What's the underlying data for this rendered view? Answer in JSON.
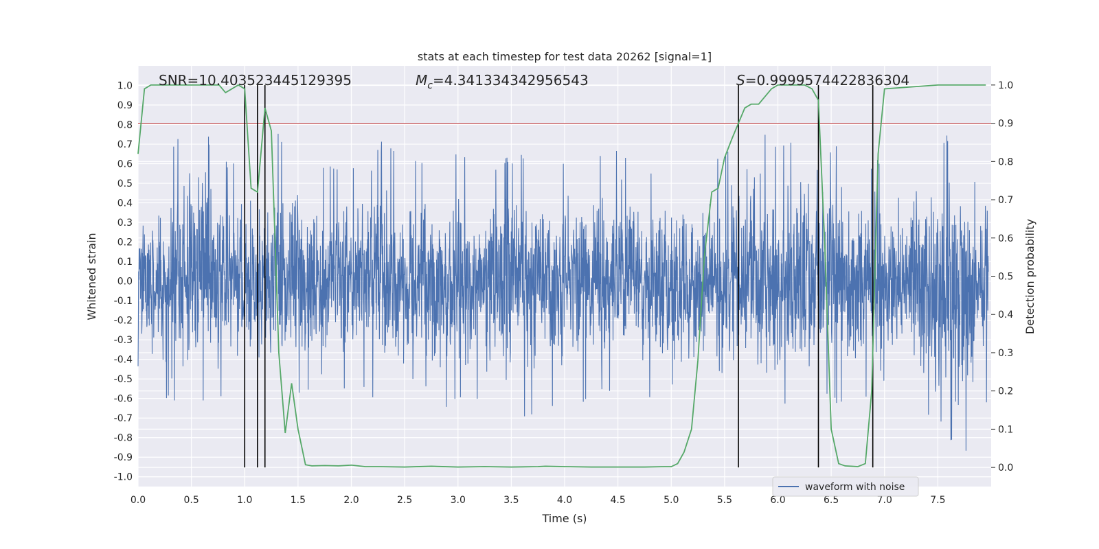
{
  "chart_data": {
    "type": "line",
    "title": "stats at each timestep for test data 20262 [signal=1]",
    "xlabel": "Time (s)",
    "ylabel_left": "Whitened strain",
    "ylabel_right": "Detection probability",
    "xlim": [
      0,
      8
    ],
    "ylim_left": [
      -1.05,
      1.1
    ],
    "ylim_right": [
      -0.05,
      1.05
    ],
    "x_ticks": [
      "0.0",
      "0.5",
      "1.0",
      "1.5",
      "2.0",
      "2.5",
      "3.0",
      "3.5",
      "4.0",
      "4.5",
      "5.0",
      "5.5",
      "6.0",
      "6.5",
      "7.0",
      "7.5"
    ],
    "y_left_ticks": [
      "-1.0",
      "-0.9",
      "-0.8",
      "-0.7",
      "-0.6",
      "-0.5",
      "-0.4",
      "-0.3",
      "-0.2",
      "-0.1",
      "0.0",
      "0.1",
      "0.2",
      "0.3",
      "0.4",
      "0.5",
      "0.6",
      "0.7",
      "0.8",
      "0.9",
      "1.0"
    ],
    "y_right_ticks": [
      "0.0",
      "0.1",
      "0.2",
      "0.3",
      "0.4",
      "0.5",
      "0.6",
      "0.7",
      "0.8",
      "0.9",
      "1.0"
    ],
    "annotations": {
      "snr": "SNR=10.403523445129395",
      "mc_symbol": "M",
      "mc_subscript": "c",
      "mc_value": "=4.341334342956543",
      "s_symbol": "S",
      "s_value": "=0.9999574422836304"
    },
    "threshold": 0.9,
    "vertical_lines_x": [
      1.0,
      1.12,
      1.19,
      5.63,
      6.38,
      6.89
    ],
    "legend": {
      "entries": [
        "waveform with noise"
      ],
      "placement": "lower right"
    },
    "grid": true,
    "colors": {
      "waveform": "#4c72b0",
      "probability": "#55a868",
      "threshold": "#c44e52",
      "markers": "#000000",
      "background": "#eaeaf2",
      "grid": "#ffffff"
    },
    "series": [
      {
        "name": "waveform with noise",
        "axis": "left",
        "description_envelope_x": [
          0.0,
          0.25,
          0.5,
          0.75,
          1.0,
          1.25,
          1.5,
          1.75,
          2.0,
          2.25,
          2.5,
          2.75,
          3.0,
          3.25,
          3.5,
          3.75,
          4.0,
          4.25,
          4.5,
          4.75,
          5.0,
          5.25,
          5.5,
          5.75,
          6.0,
          6.25,
          6.5,
          6.75,
          7.0,
          7.25,
          7.5,
          7.75,
          8.0
        ],
        "upper_envelope": [
          0.48,
          0.62,
          0.88,
          0.66,
          0.58,
          0.78,
          0.72,
          0.6,
          0.62,
          0.72,
          0.68,
          0.65,
          0.7,
          0.6,
          0.66,
          0.74,
          0.64,
          0.66,
          0.72,
          0.6,
          0.56,
          0.64,
          0.68,
          0.8,
          0.7,
          0.86,
          0.72,
          0.6,
          0.66,
          0.68,
          0.74,
          0.76,
          0.8
        ],
        "lower_envelope": [
          -0.74,
          -0.6,
          -0.66,
          -0.62,
          -0.56,
          -0.7,
          -0.62,
          -0.6,
          -0.58,
          -0.62,
          -0.68,
          -0.86,
          -0.6,
          -0.62,
          -0.82,
          -0.7,
          -0.66,
          -0.6,
          -0.62,
          -0.58,
          -0.76,
          -0.6,
          -0.7,
          -0.74,
          -0.66,
          -0.7,
          -0.62,
          -0.64,
          -0.68,
          -0.64,
          -0.76,
          -0.96,
          -0.6
        ]
      },
      {
        "name": "",
        "axis": "right",
        "x": [
          0.0,
          0.06,
          0.12,
          0.3,
          0.5,
          0.7,
          0.76,
          0.82,
          0.88,
          0.94,
          1.0,
          1.06,
          1.12,
          1.19,
          1.25,
          1.32,
          1.38,
          1.44,
          1.5,
          1.57,
          1.63,
          1.75,
          1.88,
          2.0,
          2.13,
          2.25,
          2.5,
          2.75,
          3.0,
          3.25,
          3.5,
          3.75,
          3.82,
          4.0,
          4.25,
          4.5,
          4.75,
          4.94,
          5.0,
          5.06,
          5.12,
          5.19,
          5.25,
          5.31,
          5.38,
          5.44,
          5.5,
          5.57,
          5.63,
          5.69,
          5.75,
          5.82,
          5.88,
          5.94,
          6.0,
          6.07,
          6.13,
          6.19,
          6.25,
          6.32,
          6.38,
          6.44,
          6.5,
          6.57,
          6.63,
          6.69,
          6.75,
          6.82,
          6.88,
          6.94,
          7.0,
          7.5,
          7.95
        ],
        "values": [
          0.82,
          0.99,
          1.0,
          1.0,
          1.0,
          1.0,
          1.0,
          0.98,
          0.99,
          1.0,
          0.99,
          0.73,
          0.72,
          0.94,
          0.88,
          0.3,
          0.09,
          0.22,
          0.1,
          0.007,
          0.004,
          0.005,
          0.004,
          0.006,
          0.002,
          0.002,
          0.001,
          0.003,
          0.001,
          0.002,
          0.001,
          0.002,
          0.003,
          0.002,
          0.001,
          0.001,
          0.001,
          0.002,
          0.002,
          0.01,
          0.04,
          0.1,
          0.28,
          0.55,
          0.72,
          0.73,
          0.81,
          0.86,
          0.9,
          0.94,
          0.95,
          0.95,
          0.97,
          0.99,
          1.0,
          1.0,
          1.0,
          1.0,
          1.0,
          0.99,
          0.96,
          0.58,
          0.1,
          0.01,
          0.004,
          0.003,
          0.002,
          0.01,
          0.2,
          0.82,
          0.99,
          1.0,
          1.0
        ]
      }
    ]
  }
}
